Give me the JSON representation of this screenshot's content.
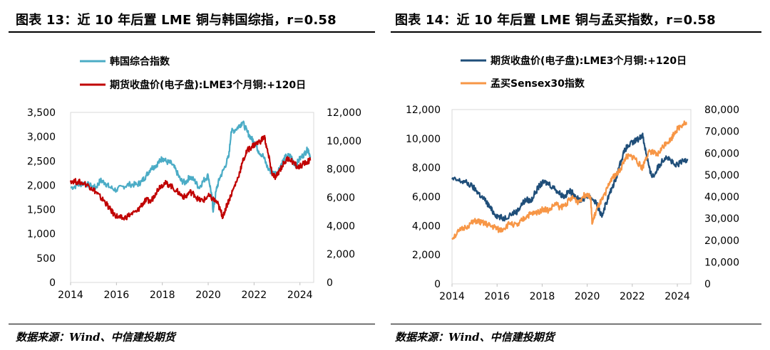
{
  "figures": [
    {
      "title": "图表 13：近 10 年后置 LME 铜与韩国综指，r=0.58",
      "source": "数据来源：Wind、中信建投期货",
      "chart_data": {
        "type": "line",
        "x_label": "",
        "x_ticks": [
          "2014",
          "2016",
          "2018",
          "2020",
          "2022",
          "2024"
        ],
        "xlim": [
          2014,
          2024.6
        ],
        "left_axis": {
          "ylim": [
            0,
            3500
          ],
          "ticks": [
            "0",
            "500",
            "1,000",
            "1,500",
            "2,000",
            "2,500",
            "3,000",
            "3,500"
          ]
        },
        "right_axis": {
          "ylim": [
            0,
            12000
          ],
          "ticks": [
            "0",
            "2,000",
            "4,000",
            "6,000",
            "8,000",
            "10,000",
            "12,000"
          ]
        },
        "legend_position": "top-left",
        "series": [
          {
            "name": "韩国综合指数",
            "axis": "left",
            "color": "#4bacc6",
            "points": [
              [
                2014.0,
                1950
              ],
              [
                2014.3,
                2000
              ],
              [
                2014.6,
                2050
              ],
              [
                2014.9,
                1980
              ],
              [
                2015.1,
                1950
              ],
              [
                2015.3,
                2100
              ],
              [
                2015.5,
                2050
              ],
              [
                2015.7,
                1960
              ],
              [
                2016.0,
                1900
              ],
              [
                2016.3,
                1980
              ],
              [
                2016.6,
                2020
              ],
              [
                2016.9,
                2010
              ],
              [
                2017.1,
                2080
              ],
              [
                2017.3,
                2200
              ],
              [
                2017.5,
                2350
              ],
              [
                2017.7,
                2400
              ],
              [
                2017.9,
                2500
              ],
              [
                2018.0,
                2560
              ],
              [
                2018.2,
                2480
              ],
              [
                2018.4,
                2450
              ],
              [
                2018.6,
                2300
              ],
              [
                2018.8,
                2100
              ],
              [
                2019.0,
                2050
              ],
              [
                2019.2,
                2180
              ],
              [
                2019.4,
                2100
              ],
              [
                2019.6,
                1950
              ],
              [
                2019.8,
                2100
              ],
              [
                2020.0,
                2200
              ],
              [
                2020.15,
                1800
              ],
              [
                2020.22,
                1460
              ],
              [
                2020.35,
                1900
              ],
              [
                2020.5,
                2150
              ],
              [
                2020.7,
                2350
              ],
              [
                2020.9,
                2600
              ],
              [
                2021.0,
                3100
              ],
              [
                2021.2,
                3150
              ],
              [
                2021.4,
                3250
              ],
              [
                2021.5,
                3300
              ],
              [
                2021.7,
                3100
              ],
              [
                2021.9,
                2950
              ],
              [
                2022.0,
                2900
              ],
              [
                2022.2,
                2700
              ],
              [
                2022.4,
                2600
              ],
              [
                2022.6,
                2350
              ],
              [
                2022.8,
                2250
              ],
              [
                2023.0,
                2250
              ],
              [
                2023.2,
                2450
              ],
              [
                2023.4,
                2600
              ],
              [
                2023.6,
                2600
              ],
              [
                2023.8,
                2400
              ],
              [
                2024.0,
                2550
              ],
              [
                2024.2,
                2650
              ],
              [
                2024.35,
                2750
              ],
              [
                2024.45,
                2600
              ]
            ]
          },
          {
            "name": "期货收盘价(电子盘):LME3个月铜:+120日",
            "axis": "right",
            "color": "#c00000",
            "points": [
              [
                2014.0,
                7200
              ],
              [
                2014.3,
                7100
              ],
              [
                2014.6,
                7000
              ],
              [
                2014.9,
                6700
              ],
              [
                2015.1,
                6400
              ],
              [
                2015.3,
                6000
              ],
              [
                2015.5,
                5700
              ],
              [
                2015.7,
                5200
              ],
              [
                2015.9,
                4800
              ],
              [
                2016.1,
                4600
              ],
              [
                2016.3,
                4500
              ],
              [
                2016.6,
                4800
              ],
              [
                2016.9,
                5000
              ],
              [
                2017.1,
                5500
              ],
              [
                2017.3,
                5800
              ],
              [
                2017.5,
                5700
              ],
              [
                2017.7,
                6300
              ],
              [
                2017.9,
                6800
              ],
              [
                2018.1,
                7000
              ],
              [
                2018.3,
                6900
              ],
              [
                2018.6,
                6500
              ],
              [
                2018.8,
                6200
              ],
              [
                2019.0,
                6000
              ],
              [
                2019.2,
                6400
              ],
              [
                2019.4,
                6200
              ],
              [
                2019.6,
                5800
              ],
              [
                2019.8,
                5800
              ],
              [
                2020.0,
                6100
              ],
              [
                2020.2,
                5900
              ],
              [
                2020.4,
                5600
              ],
              [
                2020.55,
                5000
              ],
              [
                2020.65,
                4600
              ],
              [
                2020.75,
                5200
              ],
              [
                2020.9,
                5800
              ],
              [
                2021.1,
                6600
              ],
              [
                2021.3,
                7400
              ],
              [
                2021.5,
                8500
              ],
              [
                2021.7,
                9300
              ],
              [
                2021.9,
                9600
              ],
              [
                2022.1,
                9800
              ],
              [
                2022.3,
                10000
              ],
              [
                2022.45,
                10300
              ],
              [
                2022.55,
                9500
              ],
              [
                2022.7,
                8400
              ],
              [
                2022.8,
                7600
              ],
              [
                2022.95,
                7400
              ],
              [
                2023.1,
                7900
              ],
              [
                2023.3,
                8400
              ],
              [
                2023.5,
                8800
              ],
              [
                2023.7,
                8500
              ],
              [
                2023.9,
                8100
              ],
              [
                2024.1,
                8300
              ],
              [
                2024.3,
                8500
              ],
              [
                2024.45,
                8600
              ]
            ]
          }
        ]
      }
    },
    {
      "title": "图表 14：近 10 年后置 LME 铜与孟买指数，r=0.58",
      "source": "数据来源：Wind、中信建投期货",
      "chart_data": {
        "type": "line",
        "x_label": "",
        "x_ticks": [
          "2014",
          "2016",
          "2018",
          "2020",
          "2022",
          "2024"
        ],
        "xlim": [
          2014,
          2024.6
        ],
        "left_axis": {
          "ylim": [
            0,
            12000
          ],
          "ticks": [
            "0",
            "2,000",
            "4,000",
            "6,000",
            "8,000",
            "10,000",
            "12,000"
          ]
        },
        "right_axis": {
          "ylim": [
            0,
            80000
          ],
          "ticks": [
            "0",
            "10,000",
            "20,000",
            "30,000",
            "40,000",
            "50,000",
            "60,000",
            "70,000",
            "80,000"
          ]
        },
        "legend_position": "top-left",
        "series": [
          {
            "name": "期货收盘价(电子盘):LME3个月铜:+120日",
            "axis": "left",
            "color": "#1f4e79",
            "points": [
              [
                2014.0,
                7200
              ],
              [
                2014.3,
                7100
              ],
              [
                2014.6,
                7000
              ],
              [
                2014.9,
                6700
              ],
              [
                2015.1,
                6400
              ],
              [
                2015.3,
                6000
              ],
              [
                2015.5,
                5700
              ],
              [
                2015.7,
                5200
              ],
              [
                2015.9,
                4800
              ],
              [
                2016.1,
                4600
              ],
              [
                2016.3,
                4500
              ],
              [
                2016.6,
                4800
              ],
              [
                2016.9,
                5000
              ],
              [
                2017.1,
                5500
              ],
              [
                2017.3,
                5800
              ],
              [
                2017.5,
                5700
              ],
              [
                2017.7,
                6300
              ],
              [
                2017.9,
                6800
              ],
              [
                2018.1,
                7000
              ],
              [
                2018.3,
                6900
              ],
              [
                2018.6,
                6500
              ],
              [
                2018.8,
                6200
              ],
              [
                2019.0,
                6000
              ],
              [
                2019.2,
                6400
              ],
              [
                2019.4,
                6200
              ],
              [
                2019.6,
                5800
              ],
              [
                2019.8,
                5800
              ],
              [
                2020.0,
                6100
              ],
              [
                2020.2,
                5900
              ],
              [
                2020.4,
                5600
              ],
              [
                2020.55,
                5000
              ],
              [
                2020.65,
                4600
              ],
              [
                2020.75,
                5200
              ],
              [
                2020.9,
                5800
              ],
              [
                2021.1,
                6600
              ],
              [
                2021.3,
                7400
              ],
              [
                2021.5,
                8500
              ],
              [
                2021.7,
                9300
              ],
              [
                2021.9,
                9600
              ],
              [
                2022.1,
                9800
              ],
              [
                2022.3,
                10000
              ],
              [
                2022.45,
                10300
              ],
              [
                2022.55,
                9500
              ],
              [
                2022.7,
                8400
              ],
              [
                2022.8,
                7600
              ],
              [
                2022.95,
                7400
              ],
              [
                2023.1,
                7900
              ],
              [
                2023.3,
                8400
              ],
              [
                2023.5,
                8800
              ],
              [
                2023.7,
                8500
              ],
              [
                2023.9,
                8100
              ],
              [
                2024.1,
                8300
              ],
              [
                2024.3,
                8500
              ],
              [
                2024.45,
                8600
              ]
            ]
          },
          {
            "name": "孟买Sensex30指数",
            "axis": "right",
            "color": "#f79646",
            "points": [
              [
                2014.0,
                21000
              ],
              [
                2014.3,
                24000
              ],
              [
                2014.6,
                26000
              ],
              [
                2014.9,
                28000
              ],
              [
                2015.1,
                29000
              ],
              [
                2015.3,
                28000
              ],
              [
                2015.5,
                27500
              ],
              [
                2015.7,
                26500
              ],
              [
                2015.9,
                26000
              ],
              [
                2016.1,
                24500
              ],
              [
                2016.3,
                25500
              ],
              [
                2016.6,
                28000
              ],
              [
                2016.9,
                26500
              ],
              [
                2017.1,
                29000
              ],
              [
                2017.3,
                31000
              ],
              [
                2017.5,
                32000
              ],
              [
                2017.7,
                32500
              ],
              [
                2017.9,
                33500
              ],
              [
                2018.1,
                34500
              ],
              [
                2018.3,
                33500
              ],
              [
                2018.6,
                37000
              ],
              [
                2018.8,
                35000
              ],
              [
                2019.0,
                36000
              ],
              [
                2019.2,
                38500
              ],
              [
                2019.4,
                39500
              ],
              [
                2019.6,
                37500
              ],
              [
                2019.8,
                40000
              ],
              [
                2020.0,
                41500
              ],
              [
                2020.15,
                40000
              ],
              [
                2020.22,
                27500
              ],
              [
                2020.35,
                32000
              ],
              [
                2020.5,
                36000
              ],
              [
                2020.7,
                39000
              ],
              [
                2020.9,
                44000
              ],
              [
                2021.1,
                49000
              ],
              [
                2021.3,
                50000
              ],
              [
                2021.5,
                53000
              ],
              [
                2021.7,
                58000
              ],
              [
                2021.9,
                58500
              ],
              [
                2022.1,
                58000
              ],
              [
                2022.3,
                55000
              ],
              [
                2022.45,
                53000
              ],
              [
                2022.6,
                58000
              ],
              [
                2022.8,
                61000
              ],
              [
                2022.95,
                60000
              ],
              [
                2023.1,
                59000
              ],
              [
                2023.3,
                62000
              ],
              [
                2023.5,
                65000
              ],
              [
                2023.7,
                66000
              ],
              [
                2023.9,
                70000
              ],
              [
                2024.1,
                72000
              ],
              [
                2024.3,
                74000
              ],
              [
                2024.4,
                73000
              ]
            ]
          }
        ]
      }
    }
  ]
}
